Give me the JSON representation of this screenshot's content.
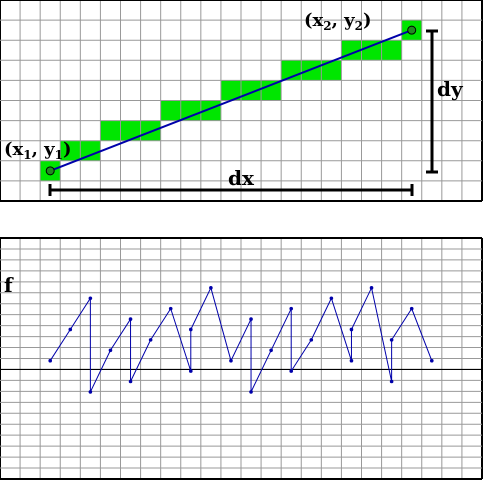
{
  "top_panel": {
    "grid_cols": 24,
    "grid_rows": 10,
    "grid_color": "#999999",
    "pixel_fill_color": "#00e600",
    "line_color": "#0000aa",
    "endpoint_color": "#228b22",
    "lit_pixels": [
      [
        2,
        8
      ],
      [
        3,
        7
      ],
      [
        4,
        7
      ],
      [
        5,
        6
      ],
      [
        6,
        6
      ],
      [
        7,
        6
      ],
      [
        8,
        5
      ],
      [
        9,
        5
      ],
      [
        10,
        5
      ],
      [
        11,
        4
      ],
      [
        12,
        4
      ],
      [
        13,
        4
      ],
      [
        14,
        3
      ],
      [
        15,
        3
      ],
      [
        16,
        3
      ],
      [
        17,
        2
      ],
      [
        18,
        2
      ],
      [
        19,
        2
      ],
      [
        20,
        1
      ]
    ],
    "line_start_cell": [
      2,
      8
    ],
    "line_end_cell": [
      20,
      1
    ],
    "labels": {
      "p1_open": "(x",
      "p1_sub_x": "1",
      "p1_comma": ", y",
      "p1_sub_y": "1",
      "p1_close": ")",
      "p2_open": "(x",
      "p2_sub_x": "2",
      "p2_comma": ", y",
      "p2_sub_y": "2",
      "p2_close": ")",
      "dx": "dx",
      "dy": "dy"
    }
  },
  "bottom_panel": {
    "label_f": "f",
    "grid_cols": 24,
    "grid_rows": 22,
    "highlight_row": 12,
    "grid_color": "#999999",
    "line_color": "#0000aa",
    "dot_color": "#0000aa",
    "chart_data": {
      "type": "line",
      "x": [
        2,
        3,
        4,
        4,
        5,
        6,
        6,
        7,
        8,
        9,
        9,
        10,
        11,
        12,
        12,
        13,
        14,
        14,
        15,
        16,
        17,
        17,
        18,
        19,
        19,
        20,
        21
      ],
      "y": [
        -4,
        -7,
        -10,
        -1,
        -5,
        -8,
        -2,
        -6,
        -9,
        -3,
        -7,
        -11,
        -4,
        -8,
        -1,
        -5,
        -9,
        -3,
        -6,
        -10,
        -4,
        -7,
        -11,
        -2,
        -6,
        -9,
        -4
      ],
      "xlabel": "",
      "ylabel": "f"
    }
  }
}
